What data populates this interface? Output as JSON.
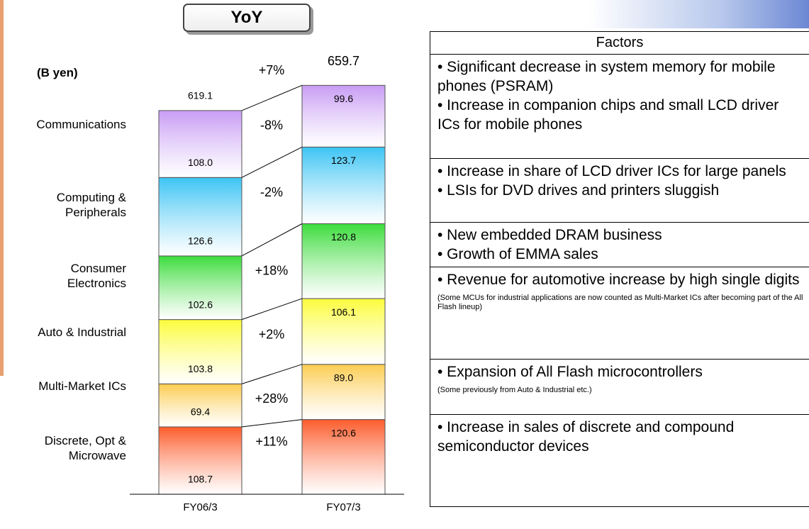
{
  "chart_data": {
    "type": "stacked_bar",
    "title": "YoY",
    "unit": "(B yen)",
    "categories": [
      "FY06/3",
      "FY07/3"
    ],
    "totals": [
      619.1,
      659.7
    ],
    "total_yoy_label": "+7%",
    "series": [
      {
        "name": "Communications",
        "color": "#c89cf4",
        "values": [
          108.0,
          99.6
        ],
        "value_labels": [
          "108.0",
          "99.6"
        ],
        "yoy_label": "-8%"
      },
      {
        "name": "Computing & Peripherals",
        "color": "#3cc4f4",
        "values": [
          126.6,
          123.7
        ],
        "value_labels": [
          "126.6",
          "123.7"
        ],
        "yoy_label": "-2%"
      },
      {
        "name": "Consumer Electronics",
        "color": "#3cdc3c",
        "values": [
          102.6,
          120.8
        ],
        "value_labels": [
          "102.6",
          "120.8"
        ],
        "yoy_label": "+18%"
      },
      {
        "name": "Auto & Industrial",
        "color": "#fcfc3c",
        "values": [
          103.8,
          106.1
        ],
        "value_labels": [
          "103.8",
          "106.1"
        ],
        "yoy_label": "+2%"
      },
      {
        "name": "Multi-Market ICs",
        "color": "#fccc50",
        "values": [
          69.4,
          89.0
        ],
        "value_labels": [
          "69.4",
          "89.0"
        ],
        "yoy_label": "+28%"
      },
      {
        "name": "Discrete, Opt & Microwave",
        "color": "#fc5c2c",
        "values": [
          108.7,
          120.6
        ],
        "value_labels": [
          "108.7",
          "120.6"
        ],
        "yoy_label": "+11%"
      }
    ]
  },
  "factors": {
    "header": "Factors",
    "rows": [
      {
        "items": [
          "• Significant decrease in system memory for mobile phones (PSRAM)",
          "• Increase in companion chips and small LCD driver ICs for mobile phones"
        ]
      },
      {
        "items": [
          "• Increase in share of LCD driver ICs for large panels",
          "• LSIs for DVD drives and printers sluggish"
        ]
      },
      {
        "items": [
          "• New embedded DRAM business",
          "• Growth of EMMA sales"
        ]
      },
      {
        "items": [
          "• Revenue for automotive increase by high single digits"
        ],
        "note": "(Some MCUs for industrial applications are now counted as Multi-Market ICs after becoming part of the All Flash lineup)"
      },
      {
        "items": [
          "• Expansion of All Flash microcontrollers"
        ],
        "note": "(Some previously from Auto & Industrial etc.)"
      },
      {
        "items": [
          "• Increase in sales of discrete  and compound semiconductor devices"
        ]
      }
    ]
  }
}
